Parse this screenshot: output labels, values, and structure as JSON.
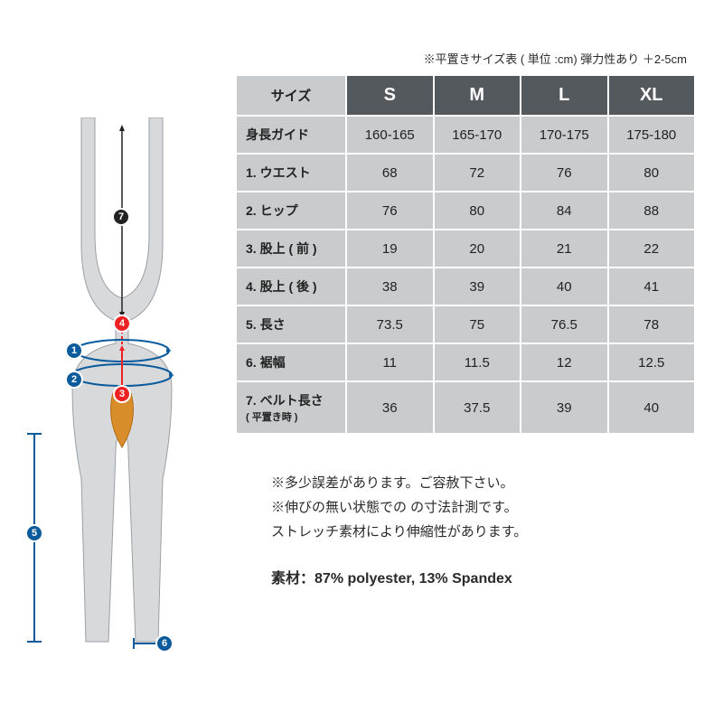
{
  "caption": "※平置きサイズ表 ( 単位 :cm) 弾力性あり ＋2-5cm",
  "table": {
    "corner": "サイズ",
    "sizes": [
      "S",
      "M",
      "L",
      "XL"
    ],
    "rows": [
      {
        "label": "身長ガイド",
        "vals": [
          "160-165",
          "165-170",
          "170-175",
          "175-180"
        ]
      },
      {
        "label": "1. ウエスト",
        "vals": [
          "68",
          "72",
          "76",
          "80"
        ]
      },
      {
        "label": "2. ヒップ",
        "vals": [
          "76",
          "80",
          "84",
          "88"
        ]
      },
      {
        "label": "3. 股上 ( 前 )",
        "vals": [
          "19",
          "20",
          "21",
          "22"
        ]
      },
      {
        "label": "4. 股上 ( 後 )",
        "vals": [
          "38",
          "39",
          "40",
          "41"
        ]
      },
      {
        "label": "5. 長さ",
        "vals": [
          "73.5",
          "75",
          "76.5",
          "78"
        ]
      },
      {
        "label": "6. 裾幅",
        "vals": [
          "11",
          "11.5",
          "12",
          "12.5"
        ]
      },
      {
        "label": "7. ベルト長さ",
        "sub": "( 平置き時 )",
        "vals": [
          "36",
          "37.5",
          "39",
          "40"
        ]
      }
    ]
  },
  "notes": [
    "※多少誤差があります。ご容赦下さい。",
    "※伸びの無い状態での の寸法計測です。",
    "ストレッチ素材により伸縮性があります。"
  ],
  "material_label": "素材：",
  "material_value": "87% polyester, 13% Spandex",
  "colors": {
    "header_bg": "#54595e",
    "cell_bg": "#c9cbcc",
    "border": "#ffffff",
    "text": "#2a2a2a",
    "marker_blue": "#0a5a9c",
    "marker_red": "#e22222",
    "garment_fill": "#d7d9db",
    "orange": "#d98c2a"
  },
  "markers": [
    "1",
    "2",
    "3",
    "4",
    "5",
    "6",
    "7"
  ]
}
